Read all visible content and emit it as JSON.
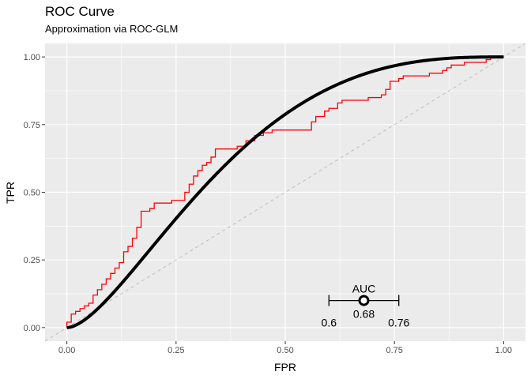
{
  "chart_data": {
    "type": "line",
    "title": "ROC Curve",
    "subtitle": "Approximation via ROC-GLM",
    "xlabel": "FPR",
    "ylabel": "TPR",
    "xlim": [
      -0.05,
      1.05
    ],
    "ylim": [
      -0.05,
      1.05
    ],
    "x_ticks": [
      0.0,
      0.25,
      0.5,
      0.75,
      1.0
    ],
    "x_tick_labels": [
      "0.00",
      "0.25",
      "0.50",
      "0.75",
      "1.00"
    ],
    "y_ticks": [
      0.0,
      0.25,
      0.5,
      0.75,
      1.0
    ],
    "y_tick_labels": [
      "0.00",
      "0.25",
      "0.50",
      "0.75",
      "1.00"
    ],
    "grid": true,
    "colors": {
      "panel": "#ebebeb",
      "grid": "#ffffff",
      "empirical": "#ff0000",
      "glm": "#000000",
      "diagonal": "#bdbdbd"
    },
    "empirical_roc": [
      [
        0.0,
        0.0
      ],
      [
        0.0,
        0.02
      ],
      [
        0.01,
        0.02
      ],
      [
        0.01,
        0.04
      ],
      [
        0.01,
        0.05
      ],
      [
        0.02,
        0.05
      ],
      [
        0.02,
        0.06
      ],
      [
        0.03,
        0.06
      ],
      [
        0.03,
        0.07
      ],
      [
        0.04,
        0.07
      ],
      [
        0.04,
        0.08
      ],
      [
        0.05,
        0.08
      ],
      [
        0.05,
        0.09
      ],
      [
        0.06,
        0.09
      ],
      [
        0.06,
        0.11
      ],
      [
        0.06,
        0.12
      ],
      [
        0.07,
        0.12
      ],
      [
        0.07,
        0.14
      ],
      [
        0.08,
        0.14
      ],
      [
        0.08,
        0.16
      ],
      [
        0.09,
        0.16
      ],
      [
        0.09,
        0.18
      ],
      [
        0.1,
        0.18
      ],
      [
        0.1,
        0.2
      ],
      [
        0.11,
        0.2
      ],
      [
        0.11,
        0.22
      ],
      [
        0.12,
        0.22
      ],
      [
        0.12,
        0.24
      ],
      [
        0.13,
        0.24
      ],
      [
        0.13,
        0.26
      ],
      [
        0.13,
        0.28
      ],
      [
        0.14,
        0.28
      ],
      [
        0.14,
        0.3
      ],
      [
        0.15,
        0.3
      ],
      [
        0.15,
        0.33
      ],
      [
        0.16,
        0.33
      ],
      [
        0.16,
        0.37
      ],
      [
        0.17,
        0.37
      ],
      [
        0.17,
        0.41
      ],
      [
        0.17,
        0.43
      ],
      [
        0.19,
        0.43
      ],
      [
        0.19,
        0.44
      ],
      [
        0.2,
        0.44
      ],
      [
        0.2,
        0.46
      ],
      [
        0.24,
        0.46
      ],
      [
        0.24,
        0.47
      ],
      [
        0.27,
        0.47
      ],
      [
        0.27,
        0.5
      ],
      [
        0.28,
        0.5
      ],
      [
        0.28,
        0.53
      ],
      [
        0.29,
        0.53
      ],
      [
        0.29,
        0.56
      ],
      [
        0.3,
        0.56
      ],
      [
        0.3,
        0.58
      ],
      [
        0.31,
        0.58
      ],
      [
        0.31,
        0.6
      ],
      [
        0.32,
        0.6
      ],
      [
        0.32,
        0.61
      ],
      [
        0.33,
        0.61
      ],
      [
        0.33,
        0.63
      ],
      [
        0.34,
        0.63
      ],
      [
        0.34,
        0.66
      ],
      [
        0.39,
        0.66
      ],
      [
        0.39,
        0.67
      ],
      [
        0.41,
        0.67
      ],
      [
        0.41,
        0.69
      ],
      [
        0.43,
        0.69
      ],
      [
        0.43,
        0.71
      ],
      [
        0.45,
        0.71
      ],
      [
        0.45,
        0.72
      ],
      [
        0.47,
        0.72
      ],
      [
        0.47,
        0.73
      ],
      [
        0.56,
        0.73
      ],
      [
        0.56,
        0.76
      ],
      [
        0.57,
        0.76
      ],
      [
        0.57,
        0.78
      ],
      [
        0.59,
        0.78
      ],
      [
        0.59,
        0.8
      ],
      [
        0.6,
        0.8
      ],
      [
        0.6,
        0.81
      ],
      [
        0.62,
        0.81
      ],
      [
        0.62,
        0.83
      ],
      [
        0.63,
        0.83
      ],
      [
        0.63,
        0.84
      ],
      [
        0.69,
        0.84
      ],
      [
        0.69,
        0.85
      ],
      [
        0.72,
        0.85
      ],
      [
        0.72,
        0.86
      ],
      [
        0.73,
        0.86
      ],
      [
        0.73,
        0.88
      ],
      [
        0.74,
        0.88
      ],
      [
        0.74,
        0.91
      ],
      [
        0.76,
        0.91
      ],
      [
        0.76,
        0.92
      ],
      [
        0.77,
        0.92
      ],
      [
        0.77,
        0.93
      ],
      [
        0.83,
        0.93
      ],
      [
        0.83,
        0.94
      ],
      [
        0.86,
        0.94
      ],
      [
        0.86,
        0.95
      ],
      [
        0.87,
        0.95
      ],
      [
        0.87,
        0.96
      ],
      [
        0.88,
        0.96
      ],
      [
        0.88,
        0.97
      ],
      [
        0.91,
        0.97
      ],
      [
        0.91,
        0.98
      ],
      [
        0.96,
        0.98
      ],
      [
        0.96,
        0.99
      ],
      [
        0.97,
        0.99
      ],
      [
        0.97,
        1.0
      ],
      [
        1.0,
        1.0
      ]
    ],
    "glm_curve_type": "smooth approximation",
    "auc": {
      "label": "AUC",
      "value": 0.68,
      "ci_lower": 0.6,
      "ci_upper": 0.76,
      "value_label": "0.68",
      "lower_label": "0.6",
      "upper_label": "0.76",
      "y_position": 0.1
    }
  }
}
